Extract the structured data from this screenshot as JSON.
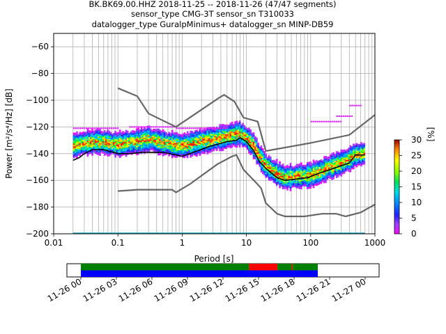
{
  "title": {
    "line1": "BK.BK69.00.HHZ   2018-11-25 -- 2018-11-26  (47/47 segments)",
    "line2": "sensor_type CMG-3T sensor_sn T310033",
    "line3": "datalogger_type GuralpMinimus+ datalogger_sn MINP-DB59"
  },
  "chart_data": [
    {
      "type": "heatmap",
      "title": "BK.BK69.00.HHZ   2018-11-25 -- 2018-11-26  (47/47 segments)",
      "xlabel": "Period [s]",
      "ylabel": "Power [m²/s⁴/Hz] [dB]",
      "x_scale": "log",
      "xlim": [
        0.01,
        1000
      ],
      "ylim": [
        -200,
        -50
      ],
      "x_ticks": [
        {
          "v": 0.01,
          "label": "0.01"
        },
        {
          "v": 0.1,
          "label": "0.1"
        },
        {
          "v": 1,
          "label": "1"
        },
        {
          "v": 10,
          "label": "10"
        },
        {
          "v": 100,
          "label": "100"
        },
        {
          "v": 1000,
          "label": "1000"
        }
      ],
      "y_ticks": [
        {
          "v": -60,
          "label": "−60"
        },
        {
          "v": -80,
          "label": "−80"
        },
        {
          "v": -100,
          "label": "−100"
        },
        {
          "v": -120,
          "label": "−120"
        },
        {
          "v": -140,
          "label": "−140"
        },
        {
          "v": -160,
          "label": "−160"
        },
        {
          "v": -180,
          "label": "−180"
        },
        {
          "v": -200,
          "label": "−200"
        }
      ],
      "grid": true,
      "colorbar": {
        "label": "[%]",
        "range": [
          0,
          30
        ],
        "ticks": [
          {
            "v": 0,
            "label": "0"
          },
          {
            "v": 5,
            "label": "5"
          },
          {
            "v": 10,
            "label": "10"
          },
          {
            "v": 15,
            "label": "15"
          },
          {
            "v": 20,
            "label": "20"
          },
          {
            "v": 25,
            "label": "25"
          },
          {
            "v": 30,
            "label": "30"
          }
        ]
      },
      "noise_models": [
        {
          "color": "#666666",
          "points": [
            [
              0.1,
              -91
            ],
            [
              0.2,
              -97
            ],
            [
              0.3,
              -110
            ],
            [
              0.8,
              -120
            ],
            [
              3.8,
              -98
            ],
            [
              4.5,
              -96
            ],
            [
              6.5,
              -101
            ],
            [
              9,
              -113
            ],
            [
              15,
              -116
            ],
            [
              20,
              -138
            ],
            [
              100,
              -132
            ],
            [
              400,
              -126
            ],
            [
              1000,
              -111
            ]
          ]
        },
        {
          "color": "#666666",
          "points": [
            [
              0.1,
              -168
            ],
            [
              0.2,
              -167
            ],
            [
              0.7,
              -167
            ],
            [
              0.8,
              -169
            ],
            [
              1.3,
              -163
            ],
            [
              3.5,
              -148
            ],
            [
              6,
              -142
            ],
            [
              7,
              -141
            ],
            [
              9,
              -152
            ],
            [
              15,
              -163
            ],
            [
              17,
              -166
            ],
            [
              20,
              -177
            ],
            [
              30,
              -185
            ],
            [
              40,
              -187
            ],
            [
              80,
              -187
            ],
            [
              150,
              -185
            ],
            [
              250,
              -185
            ],
            [
              350,
              -187
            ],
            [
              600,
              -184
            ],
            [
              1000,
              -178
            ]
          ]
        }
      ],
      "mean_curve": {
        "color": "#000000",
        "points": [
          [
            0.02,
            -145
          ],
          [
            0.025,
            -143
          ],
          [
            0.03,
            -140
          ],
          [
            0.04,
            -137
          ],
          [
            0.06,
            -137
          ],
          [
            0.1,
            -140
          ],
          [
            0.15,
            -140
          ],
          [
            0.25,
            -139
          ],
          [
            0.5,
            -139
          ],
          [
            0.8,
            -141
          ],
          [
            1,
            -142
          ],
          [
            1.5,
            -139
          ],
          [
            2.5,
            -135
          ],
          [
            5,
            -131
          ],
          [
            7,
            -130
          ],
          [
            8,
            -128
          ],
          [
            10,
            -131
          ],
          [
            13,
            -138
          ],
          [
            16,
            -146
          ],
          [
            20,
            -151
          ],
          [
            30,
            -158
          ],
          [
            40,
            -160
          ],
          [
            60,
            -159
          ],
          [
            90,
            -158
          ],
          [
            130,
            -155
          ],
          [
            200,
            -152
          ],
          [
            300,
            -149
          ],
          [
            400,
            -147
          ],
          [
            500,
            -141
          ],
          [
            700,
            -141
          ]
        ]
      },
      "density_centroid": [
        [
          0.02,
          -134
        ],
        [
          0.03,
          -132
        ],
        [
          0.05,
          -131
        ],
        [
          0.1,
          -133
        ],
        [
          0.2,
          -131
        ],
        [
          0.3,
          -129
        ],
        [
          0.5,
          -132
        ],
        [
          1,
          -134
        ],
        [
          2,
          -131
        ],
        [
          4,
          -128
        ],
        [
          6,
          -126
        ],
        [
          8,
          -125
        ],
        [
          10,
          -128
        ],
        [
          13,
          -134
        ],
        [
          16,
          -142
        ],
        [
          20,
          -149
        ],
        [
          30,
          -155
        ],
        [
          40,
          -158
        ],
        [
          60,
          -157
        ],
        [
          100,
          -156
        ],
        [
          150,
          -153
        ],
        [
          200,
          -150
        ],
        [
          300,
          -147
        ],
        [
          400,
          -144
        ],
        [
          500,
          -141
        ],
        [
          700,
          -140
        ]
      ]
    },
    {
      "type": "timeline",
      "x_range": [
        "11-26 00",
        "11-27 00"
      ],
      "x_ticks": [
        "11-26 00",
        "11-26 03",
        "11-26 06",
        "11-26 09",
        "11-26 12",
        "11-26 15",
        "11-26 18",
        "11-26 21",
        "11-27 00"
      ],
      "rows": [
        {
          "segments": [
            {
              "start_h": 0,
              "end_h": 14.2,
              "color": "#008000"
            },
            {
              "start_h": 14.2,
              "end_h": 16.6,
              "color": "#ff0000"
            },
            {
              "start_h": 16.6,
              "end_h": 17.8,
              "color": "#008000"
            },
            {
              "start_h": 17.8,
              "end_h": 17.9,
              "color": "#ff0000"
            },
            {
              "start_h": 17.9,
              "end_h": 20,
              "color": "#008000"
            }
          ]
        },
        {
          "segments": [
            {
              "start_h": 0,
              "end_h": 20,
              "color": "#0000ff"
            }
          ]
        }
      ]
    }
  ]
}
